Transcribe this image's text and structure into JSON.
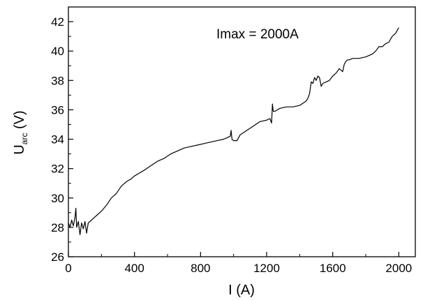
{
  "chart_data": {
    "type": "line",
    "annotation": "Imax = 2000A",
    "xlabel": "I (A)",
    "ylabel_main": "U",
    "ylabel_sub": "arc",
    "ylabel_unit": " (V)",
    "xlim": [
      0,
      2100
    ],
    "ylim": [
      26,
      43
    ],
    "xticks": [
      0,
      400,
      800,
      1200,
      1600,
      2000
    ],
    "yticks": [
      26,
      28,
      30,
      32,
      34,
      36,
      38,
      40,
      42
    ],
    "grid": false,
    "line_color": "#000000",
    "series": [
      {
        "x": [
          0,
          10,
          20,
          30,
          40,
          45,
          50,
          60,
          70,
          80,
          90,
          100,
          110,
          120,
          130,
          150,
          170,
          200,
          230,
          260,
          290,
          320,
          350,
          380,
          400,
          430,
          460,
          500,
          540,
          580,
          620,
          660,
          700,
          740,
          780,
          820,
          860,
          900,
          940,
          960,
          980,
          985,
          990,
          1000,
          1020,
          1040,
          1080,
          1120,
          1160,
          1200,
          1220,
          1230,
          1235,
          1240,
          1250,
          1280,
          1320,
          1360,
          1400,
          1440,
          1450,
          1460,
          1470,
          1480,
          1490,
          1500,
          1510,
          1520,
          1530,
          1540,
          1560,
          1580,
          1600,
          1620,
          1640,
          1660,
          1670,
          1680,
          1690,
          1700,
          1720,
          1760,
          1800,
          1840,
          1860,
          1880,
          1900,
          1920,
          1940,
          1960,
          1980,
          2000
        ],
        "y": [
          28.3,
          28.0,
          28.5,
          28.1,
          28.7,
          29.3,
          28.0,
          28.4,
          27.5,
          28.3,
          27.9,
          28.4,
          27.6,
          28.3,
          28.4,
          28.6,
          28.8,
          29.1,
          29.5,
          30.0,
          30.3,
          30.8,
          31.1,
          31.3,
          31.5,
          31.7,
          31.9,
          32.2,
          32.5,
          32.7,
          33.0,
          33.2,
          33.4,
          33.5,
          33.6,
          33.7,
          33.8,
          33.9,
          34.0,
          34.1,
          34.2,
          34.6,
          34.0,
          33.9,
          33.9,
          34.3,
          34.6,
          34.9,
          35.2,
          35.3,
          35.4,
          35.1,
          36.4,
          35.9,
          35.9,
          36.1,
          36.2,
          36.2,
          36.3,
          36.6,
          36.8,
          37.1,
          37.9,
          37.8,
          38.2,
          38.0,
          38.3,
          38.2,
          37.6,
          37.8,
          37.9,
          38.0,
          38.3,
          38.5,
          38.8,
          38.6,
          39.1,
          39.3,
          39.4,
          39.4,
          39.5,
          39.5,
          39.6,
          39.8,
          40.0,
          40.3,
          40.3,
          40.5,
          40.6,
          41.0,
          41.2,
          41.6
        ]
      }
    ]
  }
}
